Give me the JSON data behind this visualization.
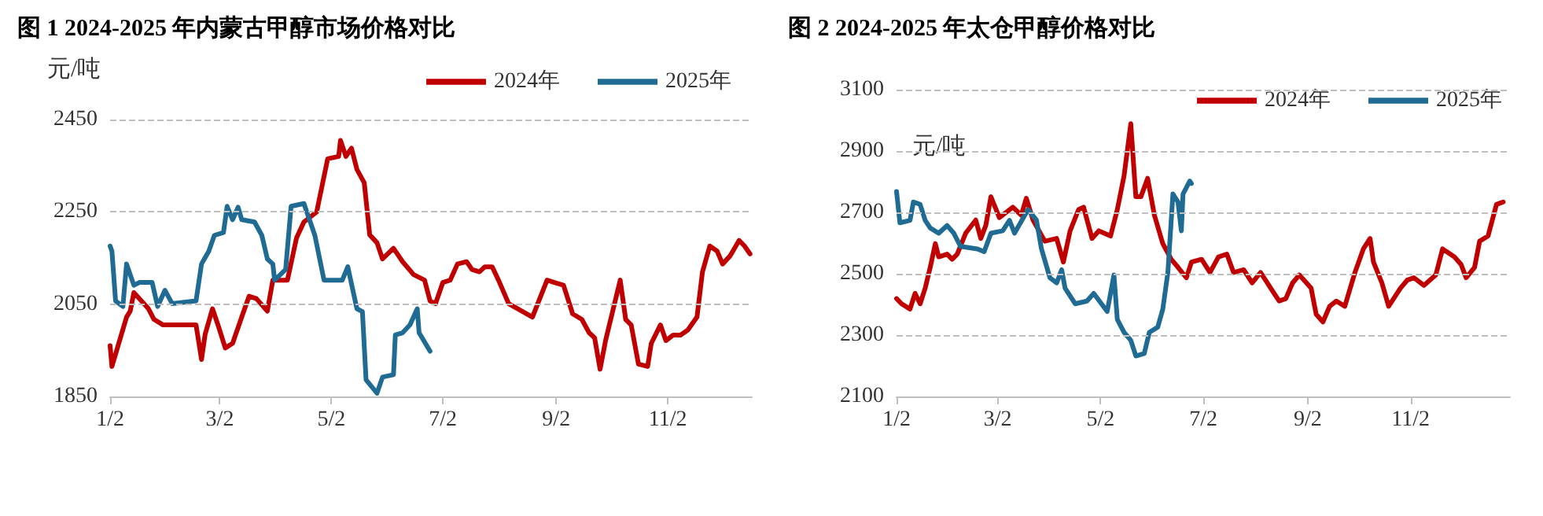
{
  "chart_data": [
    {
      "type": "line",
      "title": "图 1 2024-2025 年内蒙古甲醇市场价格对比",
      "ylabel": "元/吨",
      "legend": "top right",
      "grid": "y",
      "marker": "none",
      "xlim": [
        "--01-02",
        "--12-18"
      ],
      "xticks": [
        {
          "value": "--01-02",
          "label": "1/2"
        },
        {
          "value": "--03-02",
          "label": "3/2"
        },
        {
          "value": "--05-02",
          "label": "5/2"
        },
        {
          "value": "--07-02",
          "label": "7/2"
        },
        {
          "value": "--09-02",
          "label": "9/2"
        },
        {
          "value": "--11-02",
          "label": "11/2"
        }
      ],
      "ylim": [
        1850,
        2450
      ],
      "yticks": [
        1850,
        2050,
        2250,
        2450
      ],
      "series": [
        {
          "name": "2024年",
          "color": "#c00000",
          "x": [
            "--01-02",
            "--01-03",
            "--01-11",
            "--01-13",
            "--01-15",
            "--01-23",
            "--01-26",
            "--01-31",
            "--02-18",
            "--02-21",
            "--02-23",
            "--02-27",
            "--03-01",
            "--03-05",
            "--03-09",
            "--03-14",
            "--03-18",
            "--03-22",
            "--03-28",
            "--03-31",
            "--04-08",
            "--04-13",
            "--04-17",
            "--04-24",
            "--04-30",
            "--05-06",
            "--05-07",
            "--05-10",
            "--05-13",
            "--05-16",
            "--05-20",
            "--05-23",
            "--05-27",
            "--05-30",
            "--06-05",
            "--06-10",
            "--06-16",
            "--06-22",
            "--06-25",
            "--06-28",
            "--07-02",
            "--07-06",
            "--07-10",
            "--07-15",
            "--07-18",
            "--07-22",
            "--07-25",
            "--07-29",
            "--08-02",
            "--08-07",
            "--08-12",
            "--08-20",
            "--08-28",
            "--09-01",
            "--09-06",
            "--09-11",
            "--09-16",
            "--09-20",
            "--09-23",
            "--09-26",
            "--09-29",
            "--10-07",
            "--10-10",
            "--10-13",
            "--10-17",
            "--10-22",
            "--10-24",
            "--10-29",
            "--11-01",
            "--11-05",
            "--11-09",
            "--11-13",
            "--11-18",
            "--11-21",
            "--11-25",
            "--11-29",
            "--12-02",
            "--12-06",
            "--12-11",
            "--12-14",
            "--12-17"
          ],
          "values": [
            1960,
            1915,
            2022,
            2035,
            2075,
            2040,
            2017,
            2005,
            2005,
            1930,
            1985,
            2040,
            2005,
            1955,
            1965,
            2022,
            2067,
            2062,
            2035,
            2102,
            2102,
            2194,
            2228,
            2250,
            2365,
            2370,
            2405,
            2370,
            2388,
            2342,
            2313,
            2200,
            2183,
            2148,
            2171,
            2142,
            2114,
            2102,
            2057,
            2051,
            2097,
            2102,
            2137,
            2142,
            2125,
            2120,
            2131,
            2131,
            2097,
            2051,
            2040,
            2022,
            2102,
            2097,
            2091,
            2029,
            2017,
            1988,
            1977,
            1909,
            1971,
            2102,
            2017,
            2005,
            1920,
            1915,
            1965,
            2005,
            1971,
            1983,
            1983,
            1994,
            2022,
            2120,
            2176,
            2165,
            2137,
            2154,
            2188,
            2176,
            2159
          ]
        },
        {
          "name": "2025年",
          "color": "#1f6b93",
          "x": [
            "--01-02",
            "--01-03",
            "--01-05",
            "--01-09",
            "--01-11",
            "--01-15",
            "--01-18",
            "--01-25",
            "--01-28",
            "--02-01",
            "--02-05",
            "--02-18",
            "--02-21",
            "--02-25",
            "--02-28",
            "--03-04",
            "--03-06",
            "--03-09",
            "--03-12",
            "--03-14",
            "--03-21",
            "--03-25",
            "--03-28",
            "--03-31",
            "--04-01",
            "--04-07",
            "--04-10",
            "--04-17",
            "--04-23",
            "--04-28",
            "--05-08",
            "--05-11",
            "--05-16",
            "--05-19",
            "--05-21",
            "--05-27",
            "--05-30",
            "--06-05",
            "--06-06",
            "--06-10",
            "--06-14",
            "--06-18",
            "--06-19",
            "--06-25"
          ],
          "values": [
            2176,
            2165,
            2057,
            2045,
            2137,
            2091,
            2097,
            2097,
            2045,
            2080,
            2051,
            2057,
            2137,
            2165,
            2199,
            2205,
            2262,
            2233,
            2260,
            2233,
            2228,
            2199,
            2148,
            2137,
            2102,
            2125,
            2262,
            2268,
            2199,
            2102,
            2102,
            2131,
            2040,
            2034,
            1886,
            1857,
            1892,
            1897,
            1983,
            1988,
            2005,
            2040,
            1988,
            1948
          ]
        }
      ]
    },
    {
      "type": "line",
      "title": "图 2 2024-2025 年太仓甲醇价格对比",
      "ylabel": "元/吨",
      "legend": "top right",
      "grid": "y",
      "marker": "none",
      "xlim": [
        "--01-02",
        "--12-31"
      ],
      "xticks": [
        {
          "value": "--01-02",
          "label": "1/2"
        },
        {
          "value": "--03-02",
          "label": "3/2"
        },
        {
          "value": "--05-02",
          "label": "5/2"
        },
        {
          "value": "--07-02",
          "label": "7/2"
        },
        {
          "value": "--09-02",
          "label": "9/2"
        },
        {
          "value": "--11-02",
          "label": "11/2"
        }
      ],
      "ylim": [
        2100,
        3100
      ],
      "yticks": [
        2100,
        2300,
        2500,
        2700,
        2900,
        3100
      ],
      "series": [
        {
          "name": "2024年",
          "color": "#c00000",
          "x": [
            "--01-02",
            "--01-05",
            "--01-10",
            "--01-13",
            "--01-16",
            "--01-19",
            "--01-22",
            "--01-25",
            "--01-27",
            "--02-01",
            "--02-04",
            "--02-07",
            "--02-12",
            "--02-18",
            "--02-21",
            "--02-24",
            "--02-27",
            "--03-03",
            "--03-11",
            "--03-16",
            "--03-19",
            "--03-23",
            "--03-30",
            "--04-06",
            "--04-10",
            "--04-14",
            "--04-19",
            "--04-22",
            "--04-27",
            "--05-01",
            "--05-08",
            "--05-12",
            "--05-16",
            "--05-20",
            "--05-23",
            "--05-26",
            "--05-30",
            "--06-03",
            "--06-08",
            "--06-13",
            "--06-17",
            "--06-22",
            "--06-25",
            "--07-01",
            "--07-06",
            "--07-11",
            "--07-16",
            "--07-20",
            "--07-26",
            "--07-31",
            "--08-05",
            "--08-13",
            "--08-16",
            "--08-20",
            "--08-24",
            "--08-28",
            "--09-04",
            "--09-07",
            "--09-11",
            "--09-15",
            "--09-19",
            "--09-24",
            "--09-30",
            "--10-05",
            "--10-09",
            "--10-11",
            "--10-16",
            "--10-20",
            "--10-27",
            "--10-31",
            "--11-04",
            "--11-10",
            "--11-17",
            "--11-21",
            "--11-28",
            "--12-02",
            "--12-05",
            "--12-10",
            "--12-13",
            "--12-18",
            "--12-23",
            "--12-27"
          ],
          "values": [
            2419,
            2402,
            2385,
            2436,
            2402,
            2453,
            2521,
            2598,
            2555,
            2564,
            2547,
            2564,
            2632,
            2675,
            2615,
            2658,
            2751,
            2683,
            2717,
            2691,
            2746,
            2675,
            2606,
            2615,
            2538,
            2640,
            2709,
            2717,
            2615,
            2640,
            2623,
            2709,
            2819,
            2989,
            2751,
            2751,
            2811,
            2691,
            2598,
            2547,
            2521,
            2487,
            2538,
            2547,
            2504,
            2555,
            2564,
            2504,
            2513,
            2470,
            2504,
            2436,
            2411,
            2419,
            2470,
            2496,
            2453,
            2368,
            2343,
            2394,
            2411,
            2394,
            2504,
            2581,
            2615,
            2538,
            2470,
            2394,
            2453,
            2479,
            2487,
            2462,
            2496,
            2581,
            2555,
            2530,
            2487,
            2521,
            2606,
            2623,
            2726,
            2734
          ]
        },
        {
          "name": "2025年",
          "color": "#1f6b93",
          "x": [
            "--01-02",
            "--01-04",
            "--01-10",
            "--01-12",
            "--01-16",
            "--01-19",
            "--01-22",
            "--01-27",
            "--02-01",
            "--02-05",
            "--02-09",
            "--02-19",
            "--02-23",
            "--02-27",
            "--03-05",
            "--03-09",
            "--03-12",
            "--03-20",
            "--03-25",
            "--03-28",
            "--04-02",
            "--04-06",
            "--04-09",
            "--04-11",
            "--04-17",
            "--04-24",
            "--04-28",
            "--05-06",
            "--05-10",
            "--05-12",
            "--05-16",
            "--05-20",
            "--05-23",
            "--05-28",
            "--05-31",
            "--06-05",
            "--06-08",
            "--06-11",
            "--06-14",
            "--06-17",
            "--06-19",
            "--06-20",
            "--06-24",
            "--06-25"
          ],
          "values": [
            2768,
            2666,
            2674,
            2734,
            2726,
            2674,
            2649,
            2632,
            2657,
            2632,
            2589,
            2581,
            2572,
            2632,
            2640,
            2674,
            2632,
            2709,
            2675,
            2581,
            2487,
            2470,
            2513,
            2453,
            2402,
            2411,
            2436,
            2377,
            2496,
            2351,
            2309,
            2283,
            2232,
            2240,
            2309,
            2326,
            2385,
            2504,
            2760,
            2734,
            2640,
            2760,
            2802,
            2794
          ]
        }
      ]
    }
  ]
}
